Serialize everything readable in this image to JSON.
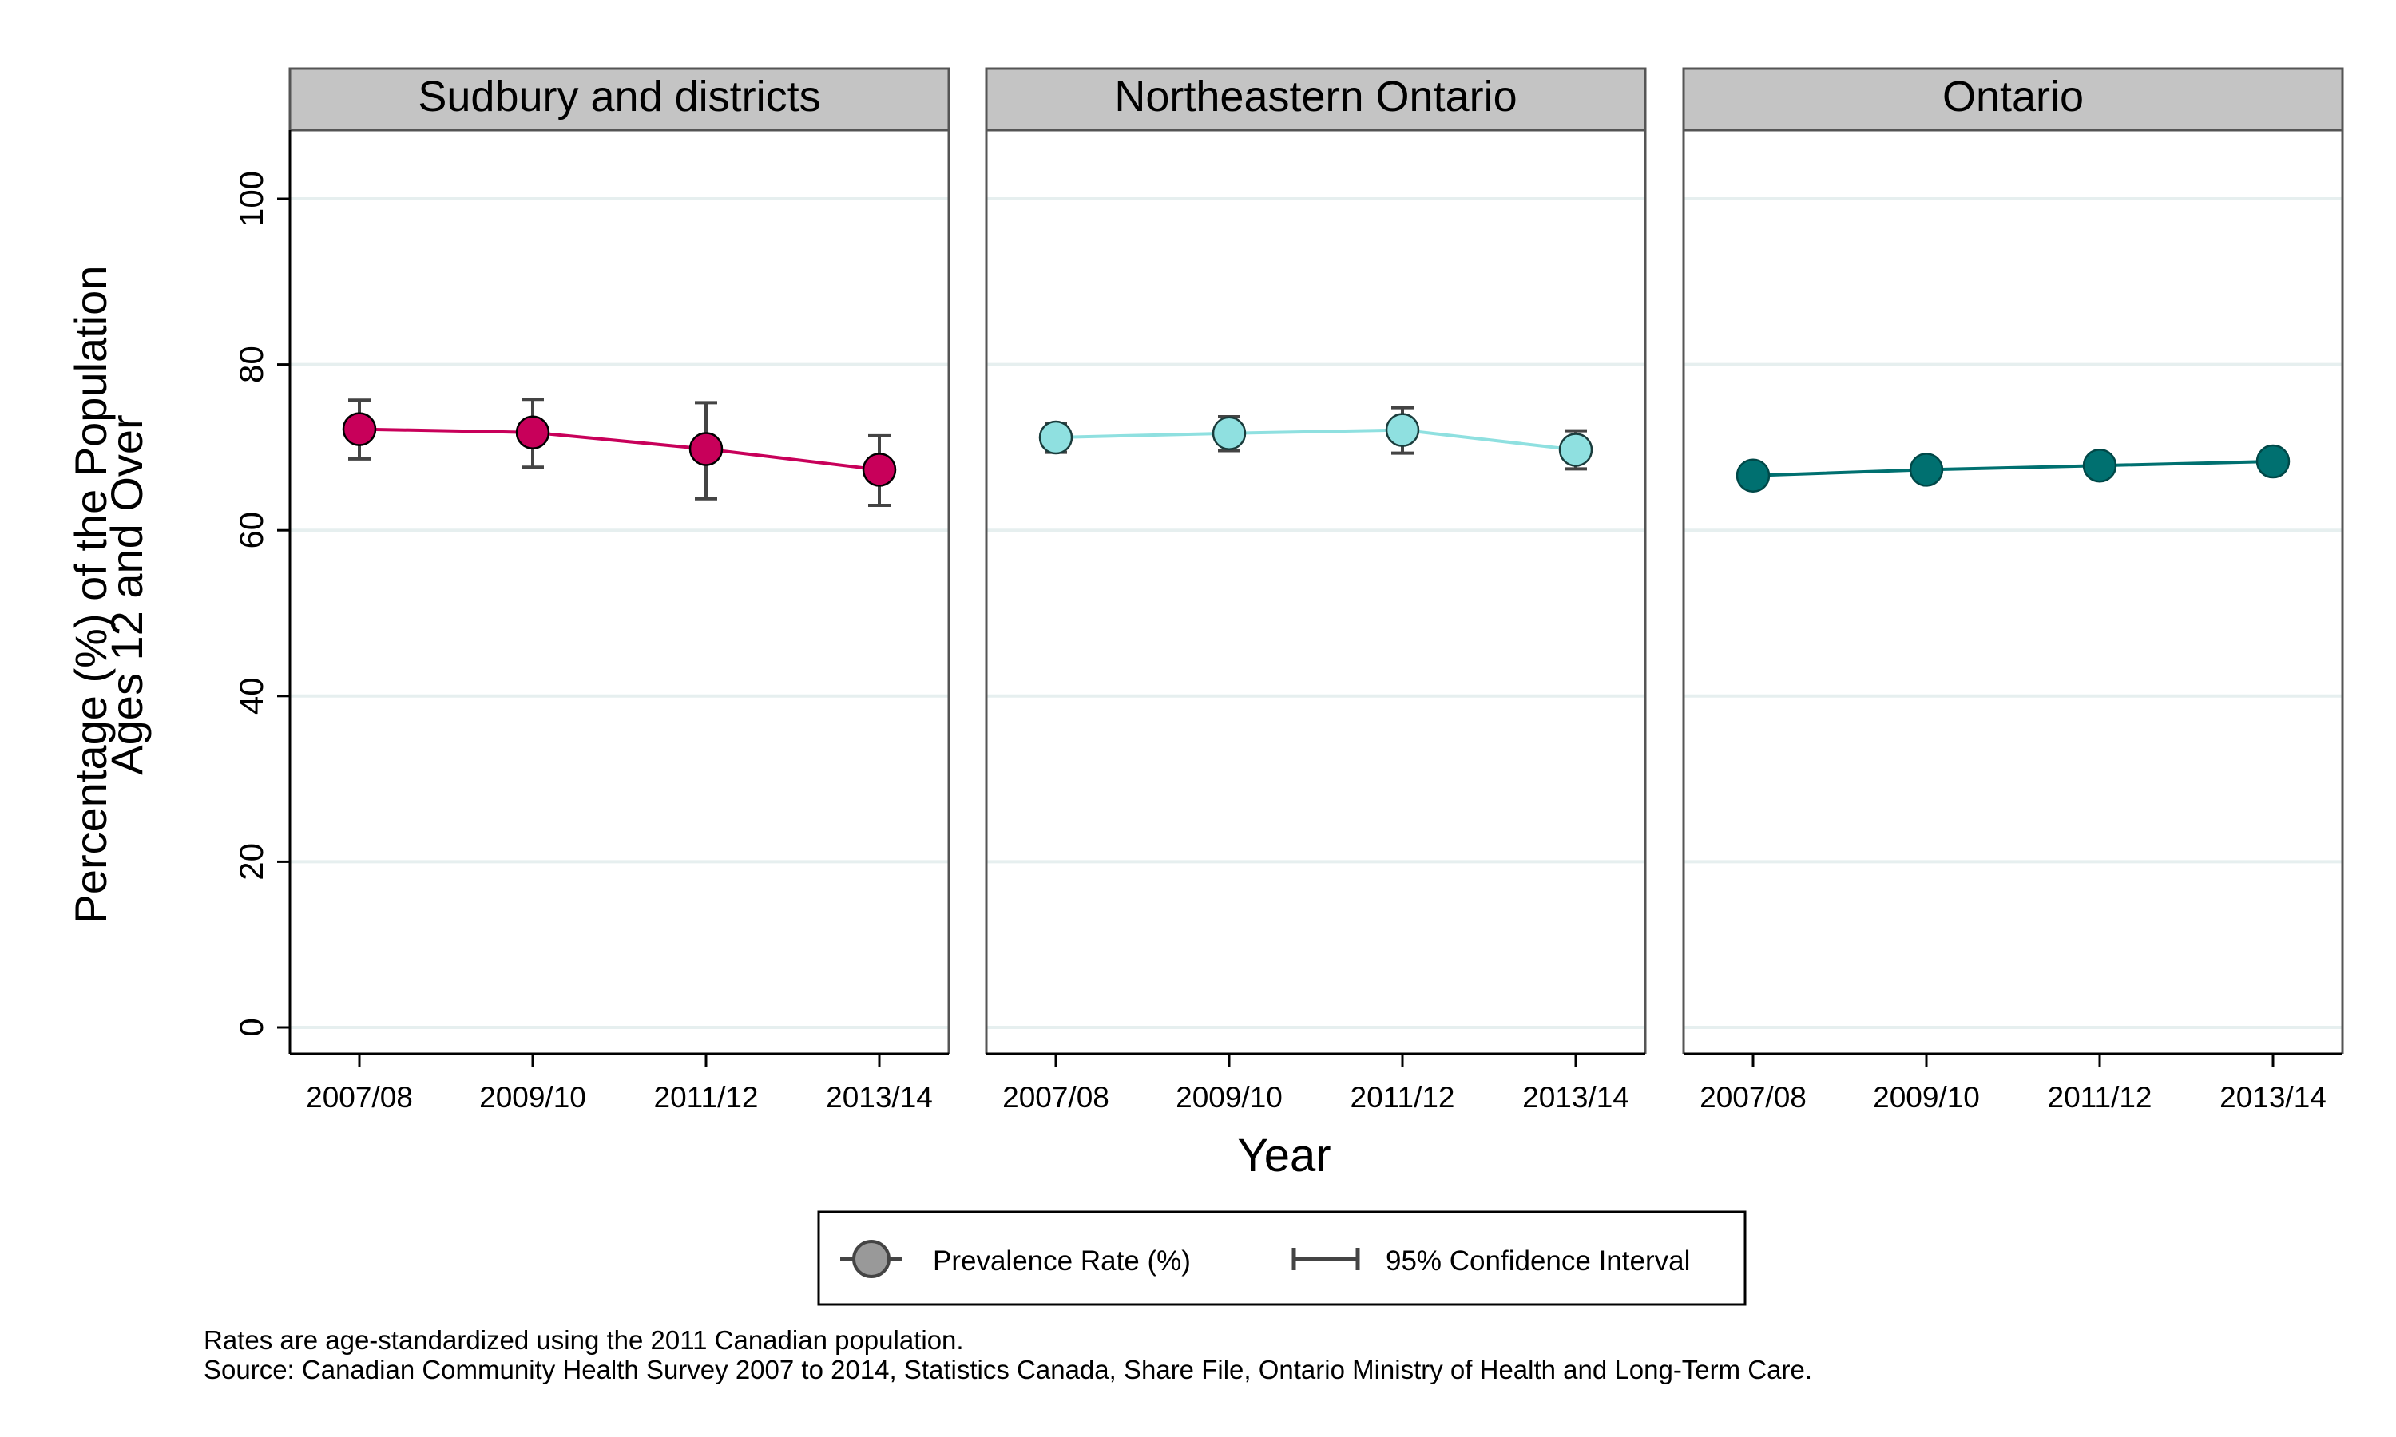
{
  "chart_data": {
    "type": "line",
    "ylabel_line1": "Percentage (%) of the Population",
    "ylabel_line2": "Ages 12 and Over",
    "xlabel": "Year",
    "ylim": [
      0,
      108
    ],
    "yticks": [
      0,
      20,
      40,
      60,
      80,
      100
    ],
    "categories": [
      "2007/08",
      "2009/10",
      "2011/12",
      "2013/14"
    ],
    "grid": true,
    "panels": [
      {
        "title": "Sudbury and districts",
        "color": "#c8005a",
        "stroke": "#000000",
        "values": [
          72.2,
          71.8,
          69.8,
          67.3
        ],
        "ci_low": [
          68.6,
          67.6,
          63.8,
          63.0
        ],
        "ci_high": [
          75.7,
          75.8,
          75.4,
          71.4
        ]
      },
      {
        "title": "Northeastern Ontario",
        "color": "#8fe0e0",
        "stroke": "#1a3c3c",
        "values": [
          71.2,
          71.7,
          72.1,
          69.7
        ],
        "ci_low": [
          69.4,
          69.6,
          69.3,
          67.4
        ],
        "ci_high": [
          72.9,
          73.7,
          74.8,
          72.0
        ]
      },
      {
        "title": "Ontario",
        "color": "#007070",
        "stroke": "#004848",
        "values": [
          66.6,
          67.3,
          67.8,
          68.3
        ],
        "ci_low": [
          66.3,
          67.0,
          67.5,
          68.0
        ],
        "ci_high": [
          66.9,
          67.6,
          68.1,
          68.6
        ]
      }
    ],
    "legend": {
      "placement": "bottom-center",
      "items": [
        "Prevalence Rate (%)",
        "95% Confidence Interval"
      ]
    },
    "notes": [
      "Rates are age-standardized using the 2011 Canadian population.",
      "Source: Canadian Community Health Survey 2007 to 2014, Statistics Canada, Share File, Ontario Ministry of Health and Long-Term Care."
    ]
  }
}
